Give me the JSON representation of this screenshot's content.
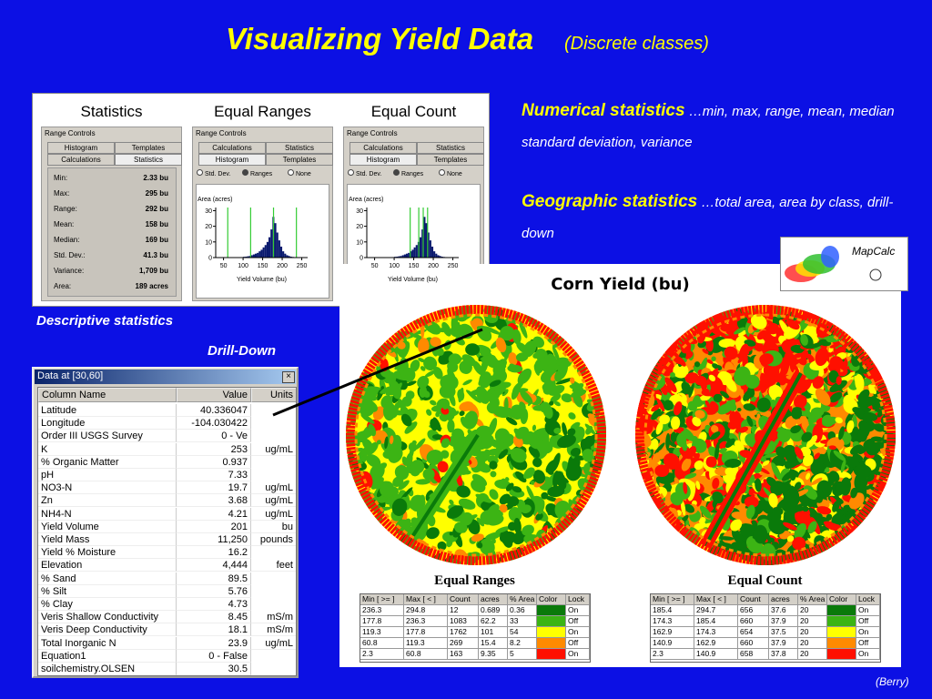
{
  "title": "Visualizing Yield Data",
  "subtitle": "(Discrete classes)",
  "bullets": [
    {
      "heading": "Numerical statistics",
      "text": "…min, max, range, mean, median standard deviation, variance"
    },
    {
      "heading": "Geographic statistics",
      "text": "…total area, area by class, drill-down"
    }
  ],
  "captions": {
    "descriptive": "Descriptive statistics",
    "drilldown": "Drill-Down"
  },
  "credit": "(Berry)",
  "logo": "MapCalc",
  "stats_panel": {
    "range_controls": "Range Controls",
    "panels": [
      {
        "title": "Statistics",
        "tabs": [
          [
            "Histogram",
            "Templates"
          ],
          [
            "Calculations",
            "Statistics"
          ]
        ]
      },
      {
        "title": "Equal Ranges",
        "tabs": [
          [
            "Calculations",
            "Statistics"
          ],
          [
            "Histogram",
            "Templates"
          ]
        ]
      },
      {
        "title": "Equal Count",
        "tabs": [
          [
            "Calculations",
            "Statistics"
          ],
          [
            "Histogram",
            "Templates"
          ]
        ]
      }
    ],
    "radio": [
      "Std. Dev.",
      "Ranges",
      "None"
    ],
    "stats": [
      [
        "Min:",
        "2.33 bu"
      ],
      [
        "Max:",
        "295 bu"
      ],
      [
        "Range:",
        "292 bu"
      ],
      [
        "Mean:",
        "158 bu"
      ],
      [
        "Median:",
        "169 bu"
      ],
      [
        "Std. Dev.:",
        "41.3 bu"
      ],
      [
        "Variance:",
        "1,709 bu"
      ],
      [
        "Area:",
        "189 acres"
      ]
    ],
    "histogram": {
      "y_label": "Area (acres)",
      "x_label": "Yield Volume (bu)",
      "color": "#0a1a6e",
      "xlim": [
        30,
        265
      ],
      "ylim": [
        0,
        32
      ],
      "xticks": [
        50,
        100,
        150,
        200,
        250
      ],
      "yticks": [
        0,
        10,
        20,
        30
      ],
      "bins": [
        95,
        100,
        105,
        110,
        115,
        120,
        125,
        130,
        135,
        140,
        145,
        150,
        155,
        160,
        165,
        170,
        175,
        180,
        185,
        190,
        195,
        200,
        205,
        210,
        215,
        220,
        225,
        230,
        235,
        240
      ],
      "counts": [
        0.3,
        0.5,
        0.6,
        0.8,
        1,
        1.5,
        2,
        2.5,
        3,
        4,
        5,
        6.5,
        8,
        10,
        13,
        18,
        26,
        22,
        16,
        11,
        7,
        4,
        2.5,
        1.5,
        1,
        0.6,
        0.4,
        0.3,
        0.2
      ]
    }
  },
  "data_window": {
    "title": "Data at [30,60]",
    "columns": [
      "Column Name",
      "Value",
      "Units"
    ],
    "rows": [
      [
        "Latitude",
        "40.336047"
      ],
      [
        "Longitude",
        "-104.030422"
      ],
      [
        "Order III USGS Survey",
        "0 - Ve"
      ],
      [
        "K",
        "253",
        "ug/mL"
      ],
      [
        "% Organic Matter",
        "0.937"
      ],
      [
        "pH",
        "7.33"
      ],
      [
        "NO3-N",
        "19.7",
        "ug/mL"
      ],
      [
        "Zn",
        "3.68",
        "ug/mL"
      ],
      [
        "NH4-N",
        "4.21",
        "ug/mL"
      ],
      [
        "Yield Volume",
        "201",
        "bu"
      ],
      [
        "Yield Mass",
        "11,250",
        "pounds"
      ],
      [
        "Yield % Moisture",
        "16.2"
      ],
      [
        "Elevation",
        "4,444",
        "feet"
      ],
      [
        "% Sand",
        "89.5"
      ],
      [
        "% Silt",
        "5.76"
      ],
      [
        "% Clay",
        "4.73"
      ],
      [
        "Veris Shallow Conductivity",
        "8.45",
        "mS/m"
      ],
      [
        "Veris Deep Conductivity",
        "18.1",
        "mS/m"
      ],
      [
        "Total Inorganic N",
        "23.9",
        "ug/mL"
      ],
      [
        "Equation1",
        "0 - False"
      ],
      [
        "soilchemistry.OLSEN",
        "30.5"
      ]
    ]
  },
  "map_panel": {
    "title": "Corn Yield (bu)",
    "columns": [
      "Min [ >= ]",
      "Max [ < ]",
      "Count",
      "acres",
      "% Area",
      "Color",
      "Lock"
    ],
    "maps": [
      {
        "name": "Equal Ranges",
        "classes": [
          {
            "min": 236.3,
            "max": 294.8,
            "count": 12,
            "acres": 0.689,
            "pct_area": 0.36,
            "color": "#0a7a0a",
            "lock": "On"
          },
          {
            "min": 177.8,
            "max": 236.3,
            "count": 1083,
            "acres": 62.2,
            "pct_area": 33,
            "color": "#3cb414",
            "lock": "Off"
          },
          {
            "min": 119.3,
            "max": 177.8,
            "count": 1762,
            "acres": 101,
            "pct_area": 54,
            "color": "#ffff00",
            "lock": "On"
          },
          {
            "min": 60.8,
            "max": 119.3,
            "count": 269,
            "acres": 15.4,
            "pct_area": 8.2,
            "color": "#ff8a00",
            "lock": "Off"
          },
          {
            "min": 2.3,
            "max": 60.8,
            "count": 163,
            "acres": 9.35,
            "pct_area": 5,
            "color": "#ff1000",
            "lock": "On"
          }
        ]
      },
      {
        "name": "Equal Count",
        "classes": [
          {
            "min": 185.4,
            "max": 294.7,
            "count": 656,
            "acres": 37.6,
            "pct_area": 20,
            "color": "#0a7a0a",
            "lock": "On"
          },
          {
            "min": 174.3,
            "max": 185.4,
            "count": 660,
            "acres": 37.9,
            "pct_area": 20,
            "color": "#3cb414",
            "lock": "Off"
          },
          {
            "min": 162.9,
            "max": 174.3,
            "count": 654,
            "acres": 37.5,
            "pct_area": 20,
            "color": "#ffff00",
            "lock": "On"
          },
          {
            "min": 140.9,
            "max": 162.9,
            "count": 660,
            "acres": 37.9,
            "pct_area": 20,
            "color": "#ff8a00",
            "lock": "Off"
          },
          {
            "min": 2.3,
            "max": 140.9,
            "count": 658,
            "acres": 37.8,
            "pct_area": 20,
            "color": "#ff1000",
            "lock": "On"
          }
        ]
      }
    ]
  }
}
